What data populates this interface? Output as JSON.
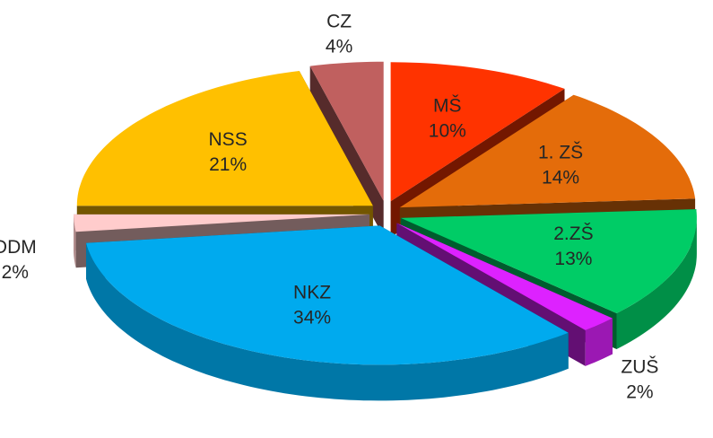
{
  "chart_data": {
    "type": "pie",
    "categories": [
      "MŠ",
      "1. ZŠ",
      "2.ZŠ",
      "ZUŠ",
      "NKZ",
      "DDM",
      "NSS",
      "CZ"
    ],
    "values": [
      10,
      14,
      13,
      2,
      34,
      2,
      21,
      4
    ],
    "value_labels": [
      "10%",
      "14%",
      "13%",
      "2%",
      "34%",
      "2%",
      "21%",
      "4%"
    ],
    "colors": [
      "#ff3300",
      "#e46c0a",
      "#00cc66",
      "#dd22ff",
      "#00aaee",
      "#ffcccc",
      "#ffc000",
      "#c0605f"
    ]
  }
}
